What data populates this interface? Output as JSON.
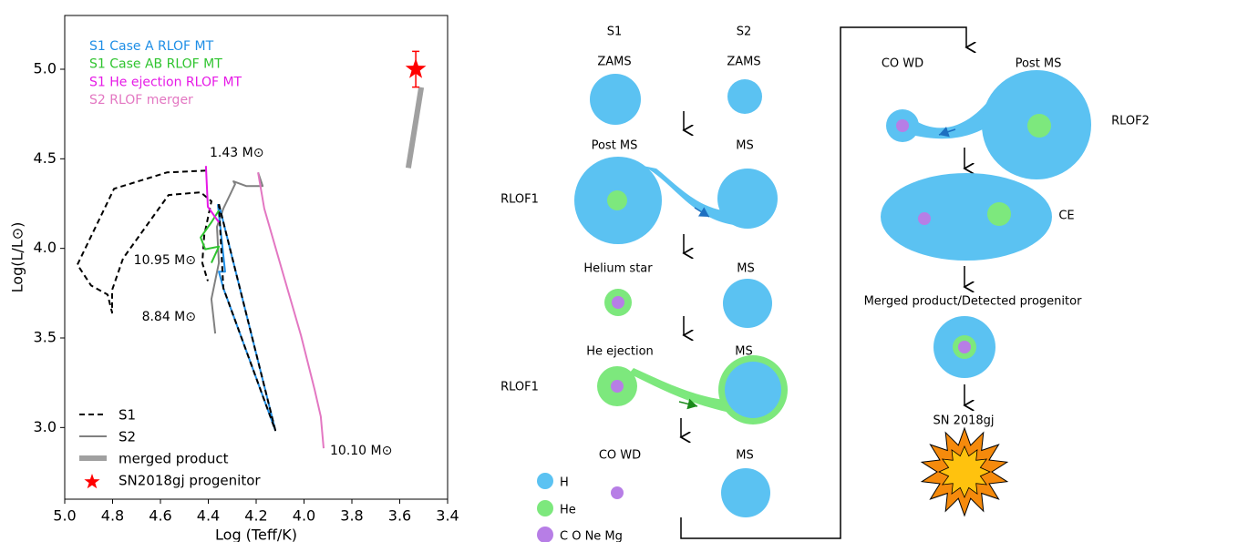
{
  "chart_data": {
    "type": "line",
    "xlabel": "Log (Teff/K)",
    "ylabel": "Log(L/L⊙)",
    "xlim": [
      5.0,
      3.4
    ],
    "ylim": [
      2.6,
      5.3
    ],
    "xticks": [
      {
        "value": 5.0,
        "label": "5.0"
      },
      {
        "value": 4.8,
        "label": "4.8"
      },
      {
        "value": 4.6,
        "label": "4.6"
      },
      {
        "value": 4.4,
        "label": "4.4"
      },
      {
        "value": 4.2,
        "label": "4.2"
      },
      {
        "value": 4.0,
        "label": "4.0"
      },
      {
        "value": 3.8,
        "label": "3.8"
      },
      {
        "value": 3.6,
        "label": "3.6"
      },
      {
        "value": 3.4,
        "label": "3.4"
      }
    ],
    "yticks": [
      {
        "value": 3.0,
        "label": "3.0"
      },
      {
        "value": 3.5,
        "label": "3.5"
      },
      {
        "value": 4.0,
        "label": "4.0"
      },
      {
        "value": 4.5,
        "label": "4.5"
      },
      {
        "value": 5.0,
        "label": "5.0"
      }
    ],
    "grid": false,
    "series": [
      {
        "name": "S1",
        "color": "#000000",
        "style": "dashed",
        "legend": "lower left",
        "x": [
          4.41,
          4.573,
          4.794,
          4.947,
          4.89,
          4.821,
          4.802,
          4.802,
          4.756,
          4.566,
          4.432,
          4.387,
          4.417,
          4.425,
          4.402,
          null,
          4.356,
          4.12,
          4.337,
          4.356
        ],
        "y": [
          4.434,
          4.424,
          4.333,
          3.909,
          3.793,
          3.742,
          3.641,
          3.768,
          3.944,
          4.298,
          4.313,
          4.263,
          4.071,
          3.919,
          3.818,
          null,
          4.247,
          2.985,
          3.778,
          4.247
        ]
      },
      {
        "name": "S2",
        "color": "#808080",
        "style": "solid",
        "legend": "lower left",
        "x": [
          4.371,
          4.387,
          4.356,
          4.364,
          4.337,
          4.288,
          4.295,
          4.242,
          4.173,
          4.192
        ],
        "y": [
          3.525,
          3.717,
          3.919,
          4.121,
          4.222,
          4.359,
          4.374,
          4.348,
          4.348,
          4.424
        ]
      },
      {
        "name": "merged product",
        "color": "#a0a0a0",
        "style": "thick",
        "legend": "lower left",
        "x": [
          3.564,
          3.51
        ],
        "y": [
          4.449,
          4.899
        ]
      },
      {
        "name": "SN2018gj progenitor",
        "color": "#ff0000",
        "style": "star",
        "legend": "lower left",
        "x": [
          3.533
        ],
        "y": [
          5.0
        ],
        "error": [
          0.1
        ]
      },
      {
        "name": "S1 Case A RLOF MT",
        "color": "#1e8ee6",
        "style": "solid",
        "legend": "upper left",
        "x": [
          4.356,
          4.12,
          4.337,
          4.356,
          4.33,
          4.36
        ],
        "y": [
          4.247,
          2.985,
          3.778,
          3.87,
          3.87,
          4.247
        ]
      },
      {
        "name": "S1 Case AB RLOF MT",
        "color": "#2fc42f",
        "style": "solid",
        "legend": "upper left",
        "x": [
          4.356,
          4.387,
          4.432,
          4.413,
          4.356,
          4.387
        ],
        "y": [
          4.212,
          4.146,
          4.061,
          3.995,
          4.01,
          3.919
        ]
      },
      {
        "name": "S1 He ejection RLOF MT",
        "color": "#e619e6",
        "style": "solid",
        "legend": "upper left",
        "x": [
          4.41,
          4.402,
          4.356
        ],
        "y": [
          4.46,
          4.232,
          4.146
        ]
      },
      {
        "name": "S2 RLOF merger",
        "color": "#e377c2",
        "style": "solid",
        "legend": "upper left",
        "x": [
          4.192,
          4.166,
          4.09,
          4.013,
          3.956,
          3.93,
          3.918
        ],
        "y": [
          4.424,
          4.222,
          3.869,
          3.515,
          3.212,
          3.061,
          2.884
        ]
      }
    ],
    "annotations": [
      "1.43 M⊙",
      "10.95 M⊙",
      "8.84 M⊙",
      "10.10 M⊙"
    ]
  },
  "diagram": {
    "columns": [
      "S1",
      "S2"
    ],
    "zams": [
      "ZAMS",
      "ZAMS"
    ],
    "post_ms": {
      "s1": "Post MS",
      "s2": "MS",
      "phase": "RLOF1"
    },
    "helium_star": {
      "s1": "Helium star",
      "s2": "MS"
    },
    "he_ejection": {
      "s1": "He ejection",
      "s2": "MS",
      "phase": "RLOF1"
    },
    "co_wd": {
      "s1": "CO WD",
      "s2": "MS"
    },
    "key": [
      "H",
      "He",
      "C O Ne Mg"
    ],
    "rlof2": {
      "s1": "CO WD",
      "s2": "Post MS",
      "phase": "RLOF2"
    },
    "ce": "CE",
    "merged": "Merged product/Detected progenitor",
    "sn": "SN 2018gj"
  }
}
